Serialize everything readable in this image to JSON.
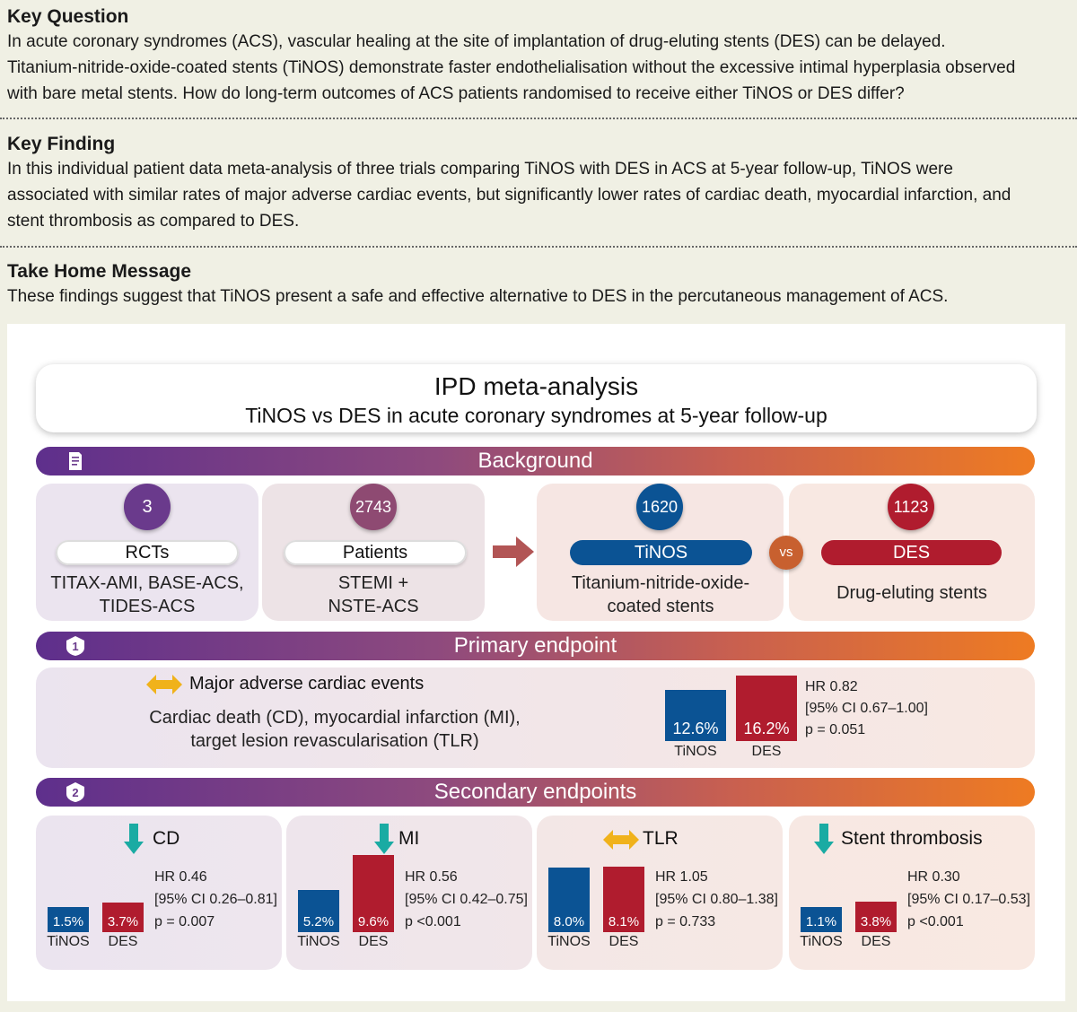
{
  "key_question": {
    "heading": "Key Question",
    "lines": [
      "In acute coronary syndromes (ACS), vascular healing at the site of implantation of drug-eluting stents (DES) can be delayed.",
      "Titanium-nitride-oxide-coated stents (TiNOS) demonstrate faster endothelialisation without the excessive intimal hyperplasia observed",
      "with bare metal stents. How do long-term outcomes of ACS patients randomised to receive either TiNOS or DES differ?"
    ]
  },
  "key_finding": {
    "heading": "Key Finding",
    "lines": [
      "In this individual patient data meta-analysis of three trials comparing TiNOS with DES in ACS at 5-year follow-up, TiNOS were",
      "associated with similar rates of major adverse cardiac events, but significantly lower rates of cardiac death, myocardial infarction, and",
      "stent thrombosis as compared to DES."
    ]
  },
  "take_home": {
    "heading": "Take Home Message",
    "text": "These findings suggest that TiNOS present a safe and effective alternative to DES in the percutaneous management of ACS."
  },
  "graphic": {
    "title": "IPD meta-analysis",
    "subtitle": "TiNOS vs DES in acute coronary syndromes at 5-year follow-up",
    "background_label": "Background",
    "primary_label": "Primary endpoint",
    "secondary_label": "Secondary endpoints",
    "badge_1": "1",
    "badge_2": "2",
    "rcts": {
      "number": "3",
      "label": "RCTs",
      "desc1": "TITAX-AMI, BASE-ACS,",
      "desc2": "TIDES-ACS"
    },
    "patients": {
      "number": "2743",
      "label": "Patients",
      "desc1": "STEMI +",
      "desc2": "NSTE-ACS"
    },
    "tinos": {
      "number": "1620",
      "label": "TiNOS",
      "desc1": "Titanium-nitride-oxide-",
      "desc2": "coated stents"
    },
    "vs": "vs",
    "des": {
      "number": "1123",
      "label": "DES",
      "desc1": "Drug-eluting stents"
    },
    "primary": {
      "title": "Major adverse cardiac events",
      "desc1": "Cardiac death (CD), myocardial infarction (MI),",
      "desc2": "target lesion revascularisation (TLR)",
      "tinos_value": "12.6%",
      "des_value": "16.2%",
      "tinos_label": "TiNOS",
      "des_label": "DES",
      "hr": "HR 0.82",
      "ci": "[95% CI 0.67–1.00]",
      "p": "p = 0.051"
    },
    "secondary": [
      {
        "title": "CD",
        "tinos": "1.5%",
        "des": "3.7%",
        "hr": "HR 0.46",
        "ci": "[95% CI 0.26–0.81]",
        "p": "p = 0.007",
        "tinos_label": "TiNOS",
        "des_label": "DES"
      },
      {
        "title": "MI",
        "tinos": "5.2%",
        "des": "9.6%",
        "hr": "HR 0.56",
        "ci": "[95% CI 0.42–0.75]",
        "p": "p <0.001",
        "tinos_label": "TiNOS",
        "des_label": "DES"
      },
      {
        "title": "TLR",
        "tinos": "8.0%",
        "des": "8.1%",
        "hr": "HR 1.05",
        "ci": "[95% CI 0.80–1.38]",
        "p": "p = 0.733",
        "tinos_label": "TiNOS",
        "des_label": "DES"
      },
      {
        "title": "Stent thrombosis",
        "tinos": "1.1%",
        "des": "3.8%",
        "hr": "HR 0.30",
        "ci": "[95% CI 0.17–0.53]",
        "p": "p <0.001",
        "tinos_label": "TiNOS",
        "des_label": "DES"
      }
    ],
    "colors": {
      "tinos": "#0b5394",
      "des": "#b01c2e",
      "purple": "#6a3a8c",
      "orange": "#ee7b22",
      "teal": "#1aaba3"
    }
  }
}
